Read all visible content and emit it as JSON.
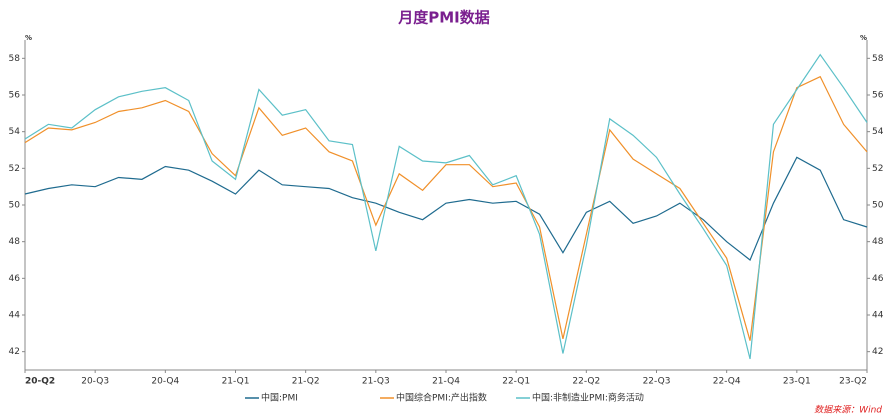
{
  "chart_data": {
    "type": "line",
    "title": "月度PMI数据",
    "y_unit": "%",
    "source": "数据来源：Wind",
    "categories": [
      "20-Q2",
      null,
      null,
      "20-Q3",
      null,
      null,
      "20-Q4",
      null,
      null,
      "21-Q1",
      null,
      null,
      "21-Q2",
      null,
      null,
      "21-Q3",
      null,
      null,
      "21-Q4",
      null,
      null,
      "22-Q1",
      null,
      null,
      "22-Q2",
      null,
      null,
      "22-Q3",
      null,
      null,
      "22-Q4",
      null,
      null,
      "23-Q1",
      null,
      null,
      "23-Q2"
    ],
    "series": [
      {
        "name": "中国:PMI",
        "color": "#1f6b8f",
        "values": [
          50.6,
          50.9,
          51.1,
          51.0,
          51.5,
          51.4,
          52.1,
          51.9,
          51.3,
          50.6,
          51.9,
          51.1,
          51.0,
          50.9,
          50.4,
          50.1,
          49.6,
          49.2,
          50.1,
          50.3,
          50.1,
          50.2,
          49.5,
          47.4,
          49.6,
          50.2,
          49.0,
          49.4,
          50.1,
          49.2,
          48.0,
          47.0,
          50.1,
          52.6,
          51.9,
          49.2,
          48.8
        ]
      },
      {
        "name": "中国综合PMI:产出指数",
        "color": "#f0902a",
        "values": [
          53.4,
          54.2,
          54.1,
          54.5,
          55.1,
          55.3,
          55.7,
          55.1,
          52.8,
          51.6,
          55.3,
          53.8,
          54.2,
          52.9,
          52.4,
          48.9,
          51.7,
          50.8,
          52.2,
          52.2,
          51.0,
          51.2,
          48.8,
          42.7,
          48.4,
          54.1,
          52.5,
          51.7,
          50.9,
          49.0,
          47.1,
          42.6,
          52.9,
          56.4,
          57.0,
          54.4,
          52.9
        ]
      },
      {
        "name": "中国:非制造业PMI:商务活动",
        "color": "#5cc0c8",
        "values": [
          53.6,
          54.4,
          54.2,
          55.2,
          55.9,
          56.2,
          56.4,
          55.7,
          52.4,
          51.4,
          56.3,
          54.9,
          55.2,
          53.5,
          53.3,
          47.5,
          53.2,
          52.4,
          52.3,
          52.7,
          51.1,
          51.6,
          48.4,
          41.9,
          47.8,
          54.7,
          53.8,
          52.6,
          50.6,
          48.7,
          46.7,
          41.6,
          54.4,
          56.3,
          58.2,
          56.4,
          54.5
        ]
      }
    ],
    "ylim": [
      41,
      59
    ],
    "yticks": [
      42,
      44,
      46,
      48,
      50,
      52,
      54,
      56,
      58
    ],
    "legend": "bottom"
  }
}
